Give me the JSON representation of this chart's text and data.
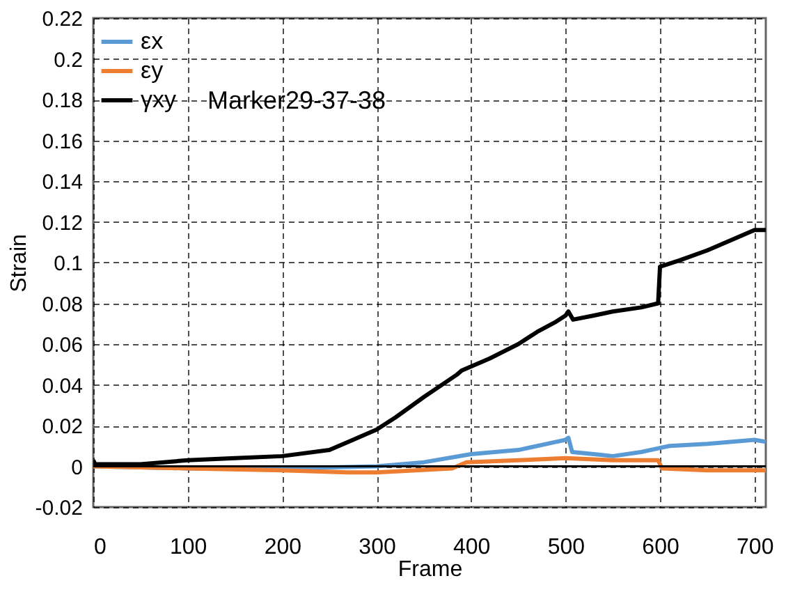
{
  "chart_data": {
    "type": "line",
    "xlabel": "Frame",
    "ylabel": "Strain",
    "annotations": [
      "Marker29-37-38"
    ],
    "xlim": [
      0,
      712
    ],
    "xticks": [
      0,
      100,
      200,
      300,
      400,
      500,
      600,
      700
    ],
    "ylim": [
      -0.02,
      0.22
    ],
    "yticks": [
      -0.02,
      0,
      0.02,
      0.04,
      0.06,
      0.08,
      0.1,
      0.12,
      0.14,
      0.16,
      0.18,
      0.2,
      0.22
    ],
    "grid": true,
    "legend": "top left",
    "line_style": "solid",
    "marker": "none",
    "ref_lines": [
      {
        "axis": "y",
        "value": 0,
        "color": "#000000"
      }
    ],
    "series": [
      {
        "name": "εx",
        "color": "#5b9bd5",
        "x": [
          0,
          100,
          200,
          300,
          350,
          400,
          450,
          490,
          500,
          503,
          507,
          530,
          550,
          580,
          600,
          610,
          650,
          700,
          712
        ],
        "values": [
          0,
          -0.001,
          -0.001,
          0,
          0.002,
          0.006,
          0.008,
          0.012,
          0.013,
          0.014,
          0.007,
          0.006,
          0.005,
          0.007,
          0.009,
          0.01,
          0.011,
          0.013,
          0.012
        ]
      },
      {
        "name": "εy",
        "color": "#ed7d31",
        "x": [
          0,
          100,
          200,
          270,
          300,
          380,
          395,
          450,
          500,
          550,
          598,
          602,
          650,
          712
        ],
        "values": [
          0,
          -0.001,
          -0.002,
          -0.003,
          -0.003,
          -0.001,
          0.002,
          0.003,
          0.004,
          0.003,
          0.003,
          -0.001,
          -0.002,
          -0.002
        ]
      },
      {
        "name": "γxy",
        "color": "#000000",
        "x": [
          0,
          2,
          50,
          100,
          150,
          200,
          250,
          280,
          300,
          320,
          350,
          385,
          390,
          420,
          450,
          470,
          490,
          500,
          503,
          508,
          530,
          550,
          580,
          598,
          600,
          620,
          650,
          680,
          700,
          712
        ],
        "values": [
          0.003,
          0.001,
          0.001,
          0.003,
          0.004,
          0.005,
          0.008,
          0.014,
          0.018,
          0.024,
          0.034,
          0.045,
          0.047,
          0.053,
          0.06,
          0.066,
          0.071,
          0.074,
          0.076,
          0.072,
          0.074,
          0.076,
          0.078,
          0.08,
          0.098,
          0.101,
          0.106,
          0.112,
          0.116,
          0.116
        ]
      }
    ]
  }
}
